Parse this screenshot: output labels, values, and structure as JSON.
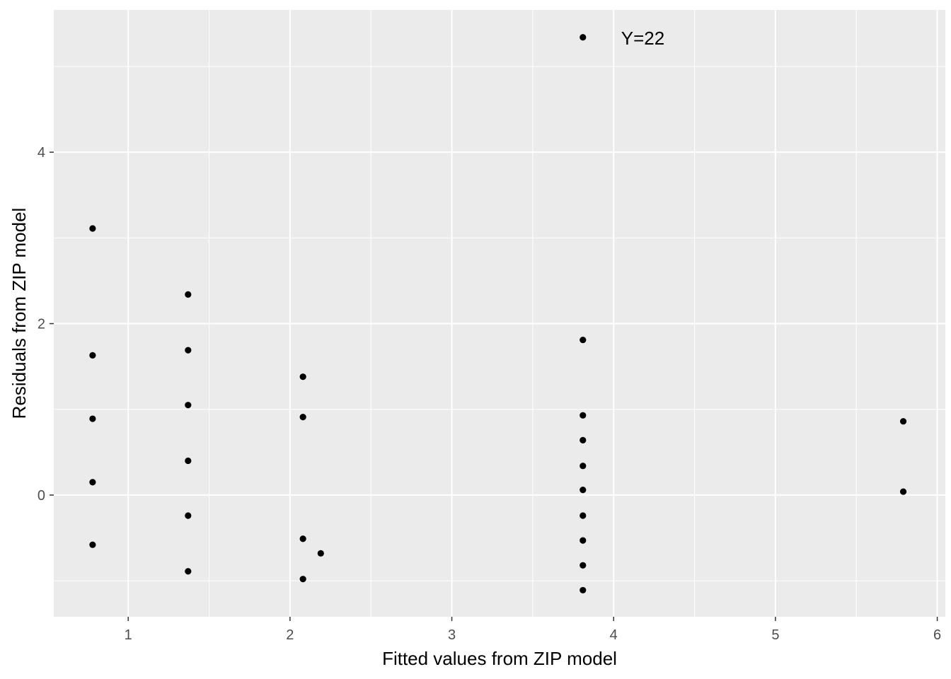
{
  "chart_data": {
    "type": "scatter",
    "title": "",
    "xlabel": "Fitted values from ZIP model",
    "ylabel": "Residuals from ZIP model",
    "xlim": [
      0.54,
      6.05
    ],
    "ylim": [
      -1.42,
      5.66
    ],
    "xticks": [
      1,
      2,
      3,
      4,
      5,
      6
    ],
    "yticks": [
      0,
      2,
      4
    ],
    "grid": true,
    "colors": {
      "panel": "#ebebeb",
      "grid": "#ffffff",
      "point": "#000000",
      "tick_text": "#4d4d4d"
    },
    "points": [
      {
        "x": 0.78,
        "y": 3.11
      },
      {
        "x": 0.78,
        "y": 1.63
      },
      {
        "x": 0.78,
        "y": 0.89
      },
      {
        "x": 0.78,
        "y": 0.15
      },
      {
        "x": 0.78,
        "y": -0.58
      },
      {
        "x": 1.37,
        "y": 2.34
      },
      {
        "x": 1.37,
        "y": 1.69
      },
      {
        "x": 1.37,
        "y": 1.05
      },
      {
        "x": 1.37,
        "y": 0.4
      },
      {
        "x": 1.37,
        "y": -0.24
      },
      {
        "x": 1.37,
        "y": -0.89
      },
      {
        "x": 2.08,
        "y": 1.38
      },
      {
        "x": 2.08,
        "y": 0.91
      },
      {
        "x": 2.08,
        "y": -0.51
      },
      {
        "x": 2.08,
        "y": -0.98
      },
      {
        "x": 2.19,
        "y": -0.68
      },
      {
        "x": 3.81,
        "y": 5.34
      },
      {
        "x": 3.81,
        "y": 1.81
      },
      {
        "x": 3.81,
        "y": 0.93
      },
      {
        "x": 3.81,
        "y": 0.64
      },
      {
        "x": 3.81,
        "y": 0.34
      },
      {
        "x": 3.81,
        "y": 0.06
      },
      {
        "x": 3.81,
        "y": -0.24
      },
      {
        "x": 3.81,
        "y": -0.53
      },
      {
        "x": 3.81,
        "y": -0.82
      },
      {
        "x": 3.81,
        "y": -1.11
      },
      {
        "x": 5.79,
        "y": 0.86
      },
      {
        "x": 5.79,
        "y": 0.04
      }
    ],
    "annotations": [
      {
        "text": "Y=22",
        "x": 3.81,
        "y": 5.34
      }
    ]
  }
}
